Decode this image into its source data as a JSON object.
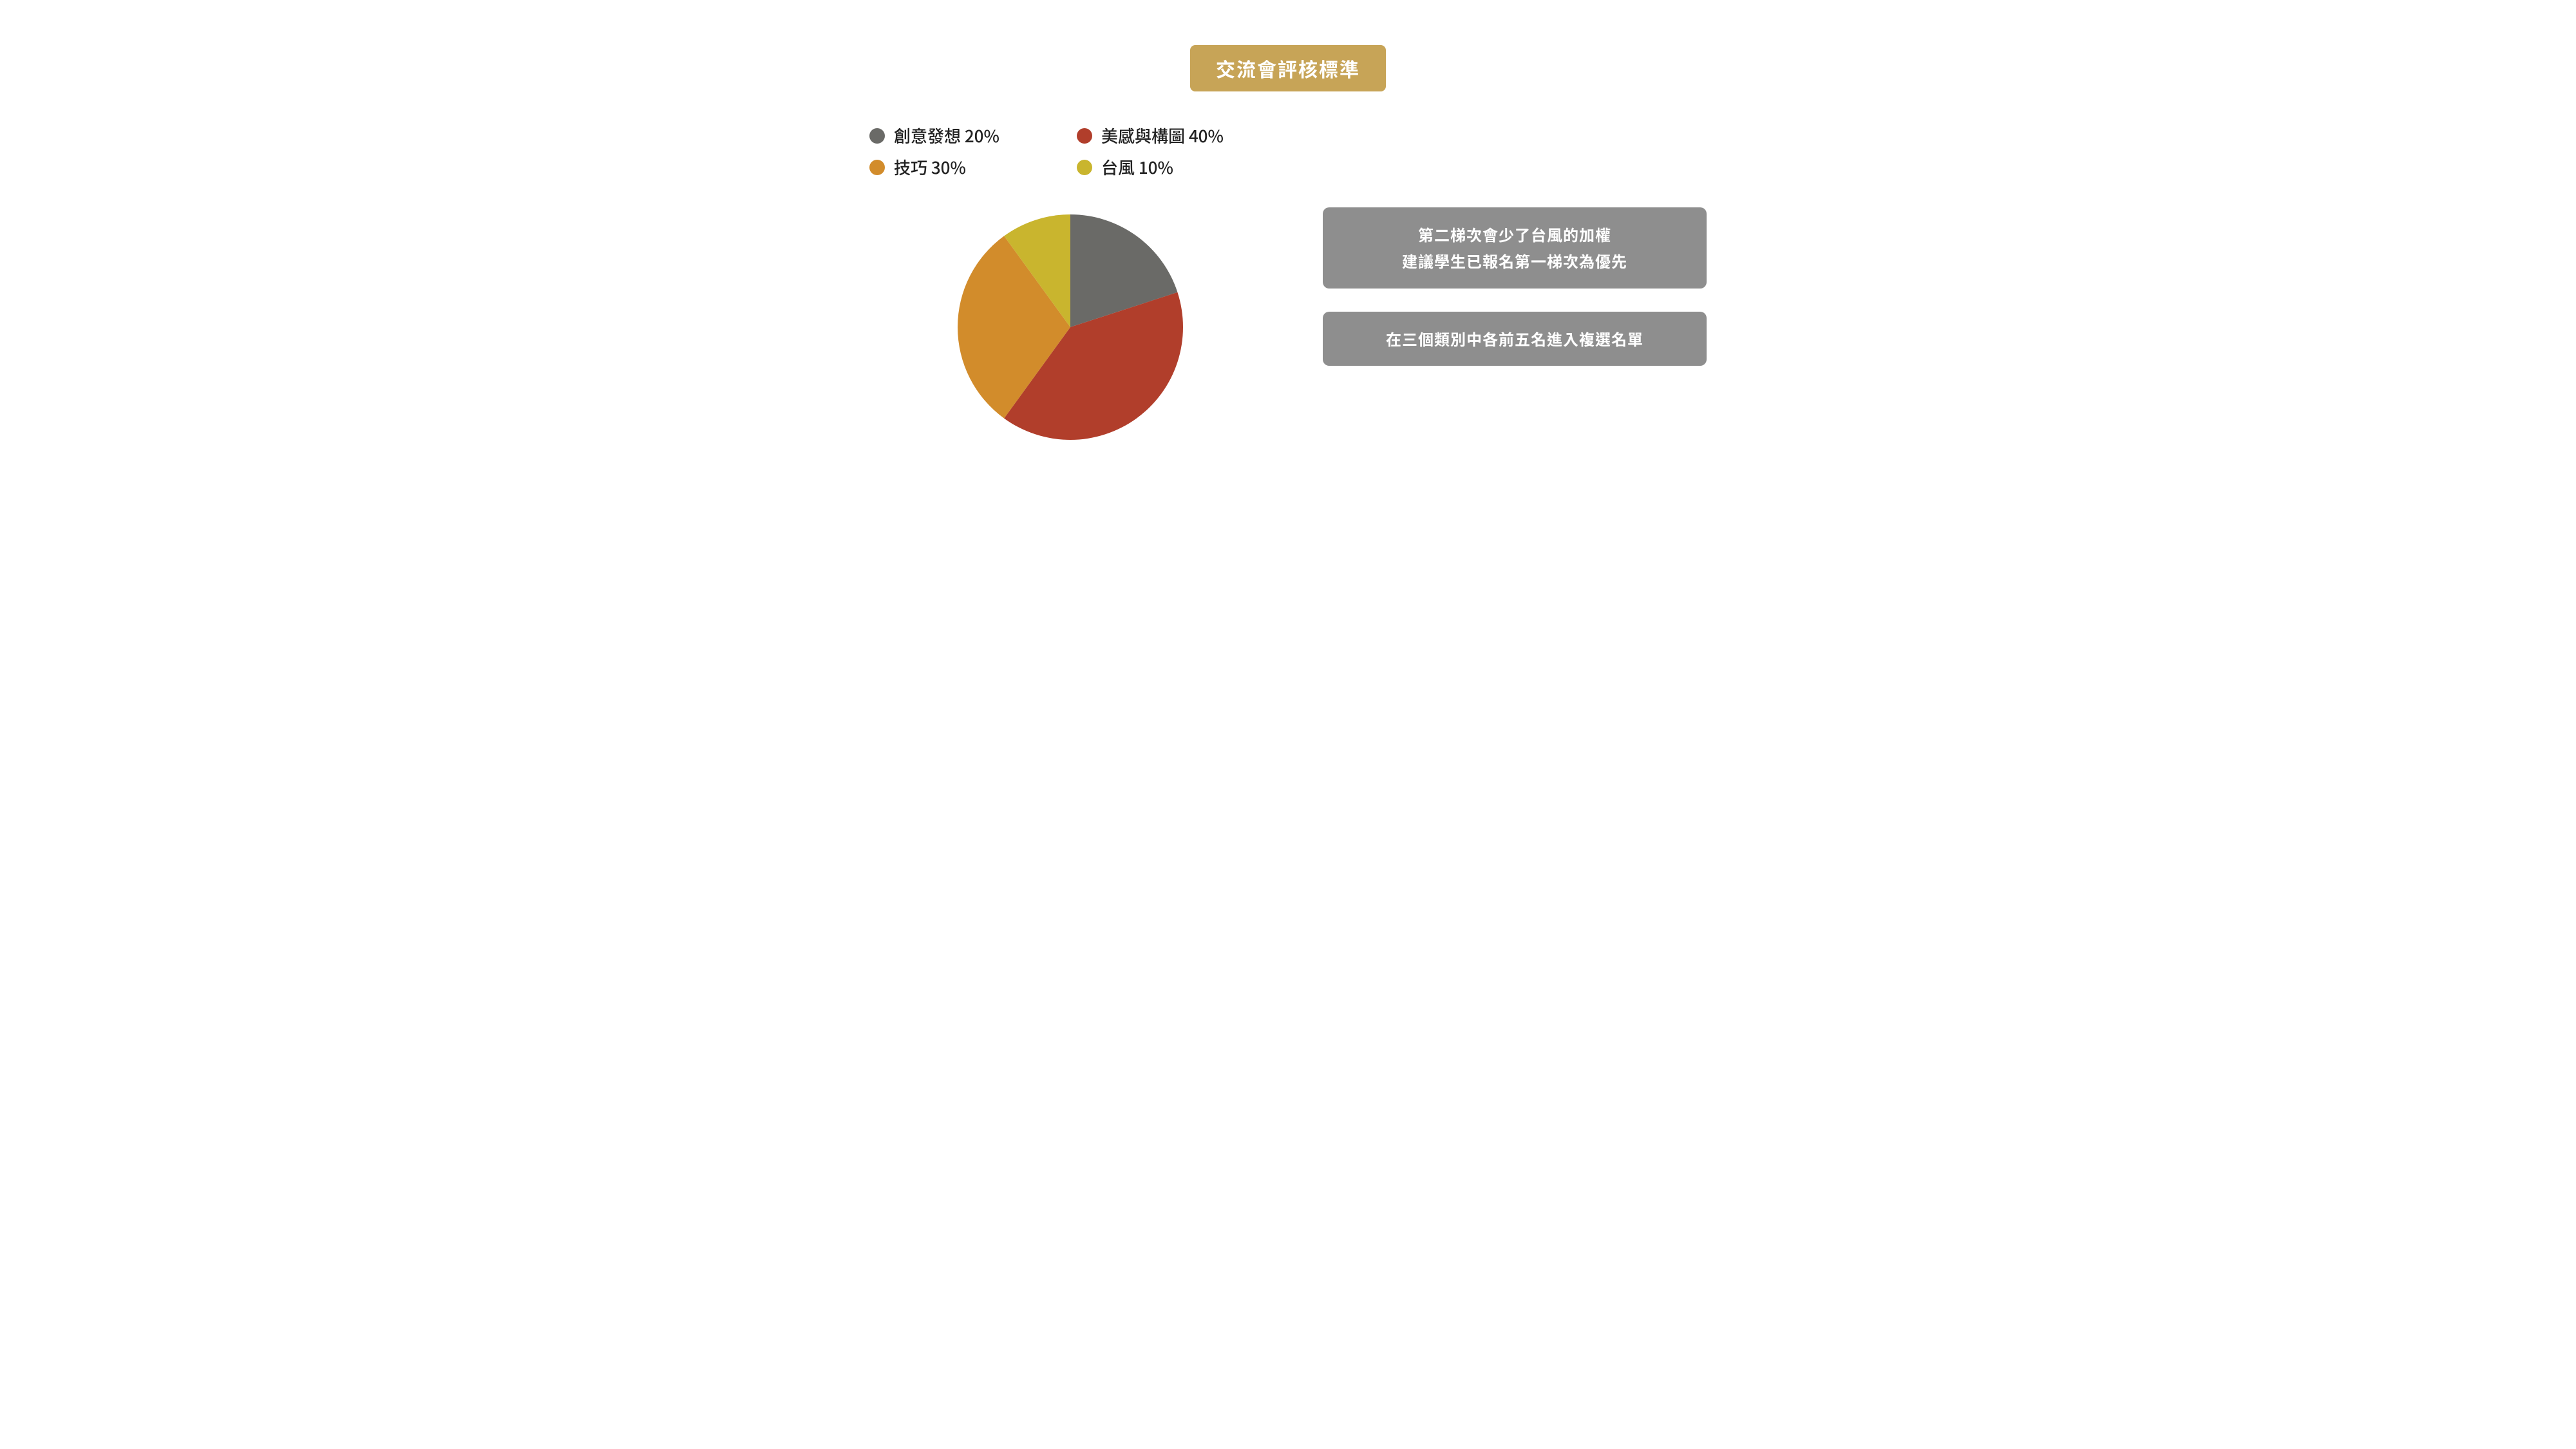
{
  "title": {
    "text": "交流會評核標準",
    "bg_color": "#c7a457",
    "text_color": "#ffffff",
    "fontsize": 30
  },
  "pie_chart": {
    "type": "pie",
    "background_color": "#ffffff",
    "radius": 175,
    "start_angle_deg": 0,
    "direction": "clockwise",
    "slices": [
      {
        "label": "創意發想",
        "percent": 20,
        "color": "#6a6a67",
        "legend_text": "創意發想 20%"
      },
      {
        "label": "美感與構圖",
        "percent": 40,
        "color": "#b13e2b",
        "legend_text": "美感與構圖 40%"
      },
      {
        "label": "技巧",
        "percent": 30,
        "color": "#d28c2b",
        "legend_text": "技巧 30%"
      },
      {
        "label": "台風",
        "percent": 10,
        "color": "#c9b52e",
        "legend_text": "台風 10%"
      }
    ],
    "legend_fontsize": 26,
    "legend_text_color": "#222222"
  },
  "info_boxes": [
    {
      "lines": [
        "第二梯次會少了台風的加權",
        "建議學生已報名第一梯次為優先"
      ]
    },
    {
      "lines": [
        "在三個類別中各前五名進入複選名單"
      ]
    }
  ],
  "info_box_style": {
    "bg_color": "#8e8e8e",
    "text_color": "#ffffff",
    "fontsize": 24,
    "border_radius": 10
  }
}
